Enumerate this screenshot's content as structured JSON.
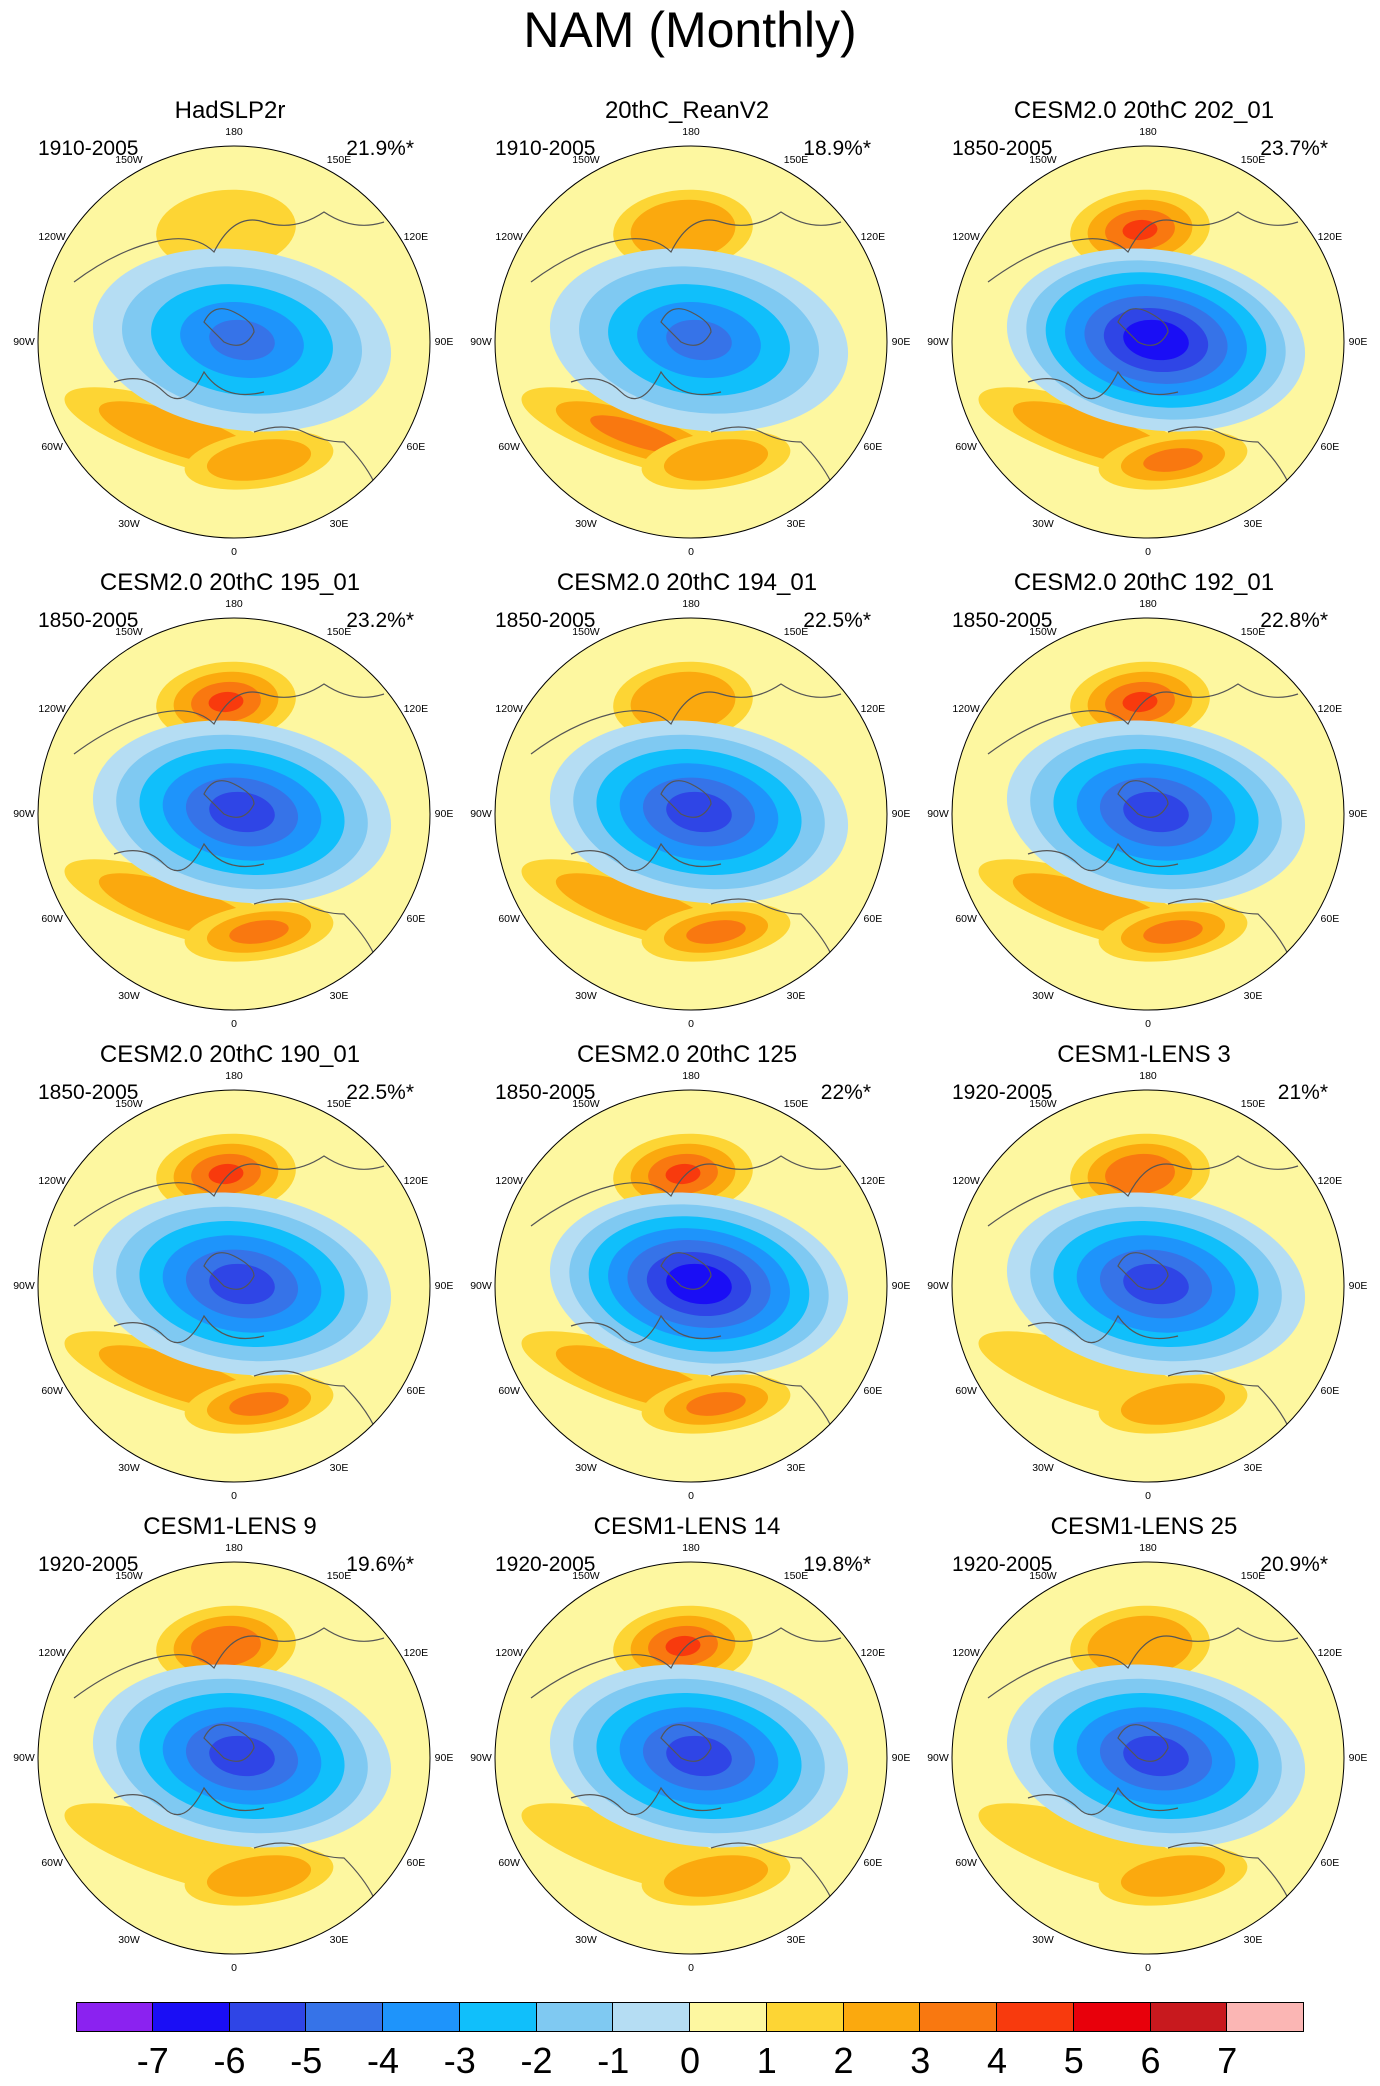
{
  "title": "NAM (Monthly)",
  "longitude_labels": [
    "180",
    "150E",
    "120E",
    "90E",
    "60E",
    "30E",
    "0",
    "30W",
    "60W",
    "90W",
    "120W",
    "150W"
  ],
  "panels": [
    {
      "name": "HadSLP2r",
      "period": "1910-2005",
      "variance": "21.9%*",
      "center_min": -4,
      "pac_max": 1,
      "atl_max": 2,
      "eur_max": 2,
      "pac_level": 1
    },
    {
      "name": "20thC_ReanV2",
      "period": "1910-2005",
      "variance": "18.9%*",
      "center_min": -4,
      "pac_max": 2,
      "atl_max": 3,
      "eur_max": 2,
      "pac_level": 2
    },
    {
      "name": "CESM2.0 20thC 202_01",
      "period": "1850-2005",
      "variance": "23.7%*",
      "center_min": -6,
      "pac_max": 4,
      "atl_max": 2,
      "eur_max": 3,
      "pac_level": 3
    },
    {
      "name": "CESM2.0 20thC 195_01",
      "period": "1850-2005",
      "variance": "23.2%*",
      "center_min": -5,
      "pac_max": 4,
      "atl_max": 2,
      "eur_max": 3,
      "pac_level": 3
    },
    {
      "name": "CESM2.0 20thC 194_01",
      "period": "1850-2005",
      "variance": "22.5%*",
      "center_min": -5,
      "pac_max": 2,
      "atl_max": 2,
      "eur_max": 3,
      "pac_level": 2
    },
    {
      "name": "CESM2.0 20thC 192_01",
      "period": "1850-2005",
      "variance": "22.8%*",
      "center_min": -5,
      "pac_max": 4,
      "atl_max": 2,
      "eur_max": 3,
      "pac_level": 3
    },
    {
      "name": "CESM2.0 20thC 190_01",
      "period": "1850-2005",
      "variance": "22.5%*",
      "center_min": -5,
      "pac_max": 4,
      "atl_max": 2,
      "eur_max": 3,
      "pac_level": 3
    },
    {
      "name": "CESM2.0 20thC 125",
      "period": "1850-2005",
      "variance": "22%*",
      "center_min": -6,
      "pac_max": 4,
      "atl_max": 2,
      "eur_max": 3,
      "pac_level": 3
    },
    {
      "name": "CESM1-LENS 3",
      "period": "1920-2005",
      "variance": "21%*",
      "center_min": -5,
      "pac_max": 3,
      "atl_max": 1,
      "eur_max": 2,
      "pac_level": 3
    },
    {
      "name": "CESM1-LENS 9",
      "period": "1920-2005",
      "variance": "19.6%*",
      "center_min": -5,
      "pac_max": 3,
      "atl_max": 1,
      "eur_max": 2,
      "pac_level": 2
    },
    {
      "name": "CESM1-LENS 14",
      "period": "1920-2005",
      "variance": "19.8%*",
      "center_min": -5,
      "pac_max": 4,
      "atl_max": 1,
      "eur_max": 2,
      "pac_level": 3
    },
    {
      "name": "CESM1-LENS 25",
      "period": "1920-2005",
      "variance": "20.9%*",
      "center_min": -5,
      "pac_max": 2,
      "atl_max": 1,
      "eur_max": 2,
      "pac_level": 2
    }
  ],
  "colorbar": {
    "labels": [
      "-7",
      "-6",
      "-5",
      "-4",
      "-3",
      "-2",
      "-1",
      "0",
      "1",
      "2",
      "3",
      "4",
      "5",
      "6",
      "7"
    ],
    "colors": [
      "#8b22f0",
      "#1a0ef5",
      "#2f45e6",
      "#3673e8",
      "#1e94fb",
      "#10bffb",
      "#7fc9f2",
      "#b5ddf3",
      "#fdf7a0",
      "#fdd534",
      "#fba90e",
      "#f97810",
      "#f83a0d",
      "#e8000b",
      "#c8191e",
      "#fbb6b4"
    ]
  }
}
